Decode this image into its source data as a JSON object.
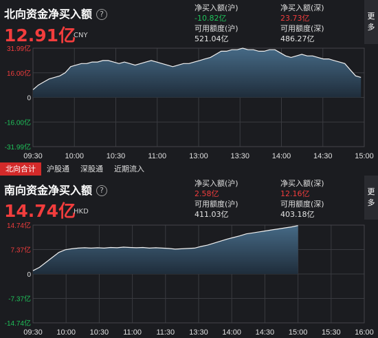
{
  "north": {
    "title": "北向资金净买入额",
    "help_icon": "?",
    "value": "12.91亿",
    "unit": "CNY",
    "stats": {
      "sh_net_label": "净买入额(沪)",
      "sh_net_value": "-10.82亿",
      "sz_net_label": "净买入额(深)",
      "sz_net_value": "23.73亿",
      "sh_quota_label": "可用额度(沪)",
      "sh_quota_value": "521.04亿",
      "sz_quota_label": "可用额度(深)",
      "sz_quota_value": "486.27亿"
    },
    "more": "更多",
    "y_ticks": [
      "31.99亿",
      "16.00亿",
      "0",
      "-16.00亿",
      "-31.99亿"
    ],
    "x_ticks": [
      "09:30",
      "10:00",
      "10:30",
      "11:00",
      "13:00",
      "13:30",
      "14:00",
      "14:30",
      "15:00"
    ]
  },
  "tabs": [
    {
      "label": "北向合计",
      "active": true
    },
    {
      "label": "沪股通",
      "active": false
    },
    {
      "label": "深股通",
      "active": false
    },
    {
      "label": "近期流入",
      "active": false
    }
  ],
  "south": {
    "title": "南向资金净买入额",
    "help_icon": "?",
    "value": "14.74亿",
    "unit": "HKD",
    "stats": {
      "sh_net_label": "净买入额(沪)",
      "sh_net_value": "2.58亿",
      "sz_net_label": "净买入额(深)",
      "sz_net_value": "12.16亿",
      "sh_quota_label": "可用额度(沪)",
      "sh_quota_value": "411.03亿",
      "sz_quota_label": "可用额度(深)",
      "sz_quota_value": "403.18亿"
    },
    "more": "更多",
    "y_ticks": [
      "14.74亿",
      "7.37亿",
      "0",
      "-7.37亿",
      "-14.74亿"
    ],
    "x_ticks": [
      "09:30",
      "10:00",
      "10:30",
      "11:00",
      "11:30",
      "13:30",
      "14:00",
      "14:30",
      "15:00",
      "15:30",
      "16:00"
    ]
  },
  "chart_data": [
    {
      "type": "area",
      "name": "north",
      "ylim": [
        -31.99,
        31.99
      ],
      "y": [
        5,
        8,
        10,
        12,
        13,
        14,
        16,
        20,
        21,
        22,
        22,
        23,
        23,
        24,
        24,
        23,
        22,
        23,
        22,
        21,
        22,
        23,
        24,
        23,
        22,
        21,
        20,
        21,
        22,
        22,
        23,
        24,
        25,
        26,
        28,
        30,
        30,
        31,
        31,
        32,
        31,
        31,
        30,
        30,
        31,
        31,
        29,
        27,
        26,
        27,
        28,
        27,
        27,
        26,
        25,
        25,
        24,
        23,
        22,
        18,
        14,
        13
      ]
    },
    {
      "type": "area",
      "name": "south",
      "ylim": [
        -14.74,
        14.74
      ],
      "y": [
        1,
        2,
        3.5,
        5,
        6.5,
        7.3,
        7.6,
        7.8,
        7.9,
        7.8,
        7.9,
        7.8,
        8,
        7.9,
        8.1,
        8,
        7.9,
        8,
        7.8,
        7.9,
        7.8,
        7.7,
        7.5,
        7.6,
        7.7,
        7.8,
        8.3,
        8.7,
        9.3,
        9.9,
        10.5,
        11,
        11.5,
        12.1,
        12.4,
        12.7,
        13,
        13.3,
        13.6,
        13.9,
        14.2,
        14.6
      ]
    }
  ]
}
